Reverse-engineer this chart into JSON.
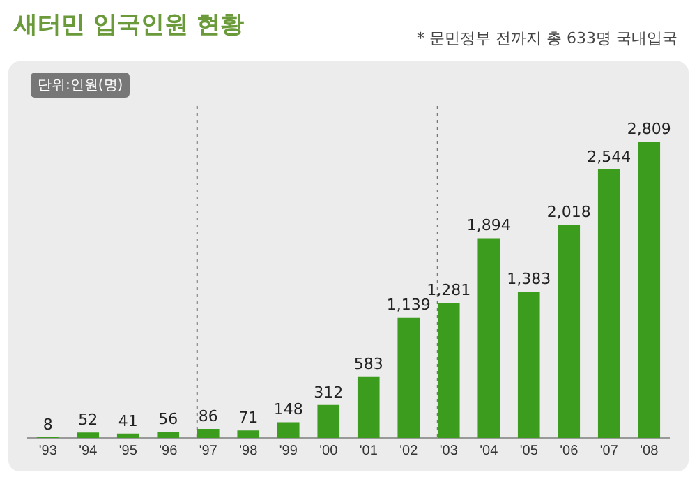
{
  "chart_data": {
    "type": "bar",
    "title": "새터민 입국인원 현황",
    "subtitle": "* 문민정부 전까지 총 633명 국내입국",
    "annotations": [
      "단위:인원(명)"
    ],
    "categories": [
      "'93",
      "'94",
      "'95",
      "'96",
      "'97",
      "'98",
      "'99",
      "'00",
      "'01",
      "'02",
      "'03",
      "'04",
      "'05",
      "'06",
      "'07",
      "'08"
    ],
    "values": [
      8,
      52,
      41,
      56,
      86,
      71,
      148,
      312,
      583,
      1139,
      1281,
      1894,
      1383,
      2018,
      2544,
      2809
    ],
    "value_labels": [
      "8",
      "52",
      "41",
      "56",
      "86",
      "71",
      "148",
      "312",
      "583",
      "1,139",
      "1,281",
      "1,894",
      "1,383",
      "2,018",
      "2,544",
      "2,809"
    ],
    "color": "#3c9c1e",
    "grid": false,
    "legend": false,
    "ref_lines": [
      {
        "axis": "x",
        "value": "'97",
        "line_style": "dotted",
        "color": "#777777"
      },
      {
        "axis": "x",
        "value": "'03",
        "line_style": "dotted",
        "color": "#777777"
      }
    ]
  }
}
